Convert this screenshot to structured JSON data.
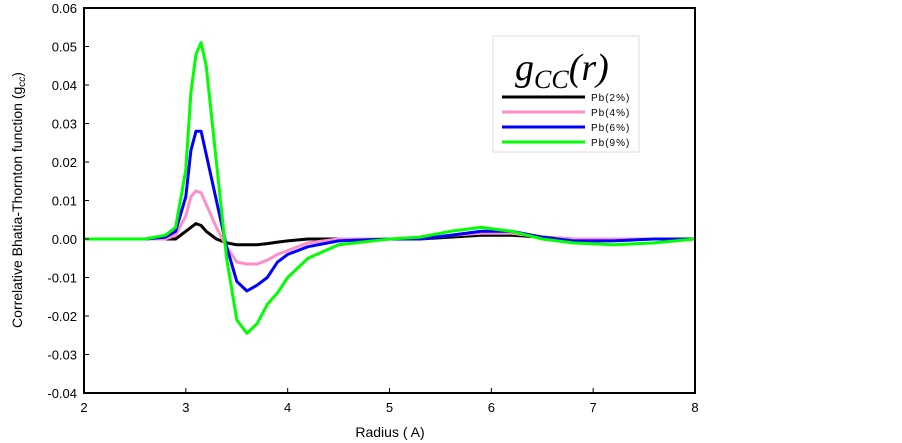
{
  "chart_data": {
    "type": "line",
    "xlabel": "Radius ( A)",
    "ylabel": "Correlative Bhatia-Thornton function (g",
    "ylabel_sub": "cc",
    "ylabel_end": ")",
    "legend_title": "g",
    "legend_title_sub": "CC",
    "legend_title_end": "(r)",
    "legend_position": "top-right",
    "xlim": [
      2,
      8
    ],
    "ylim": [
      -0.04,
      0.06
    ],
    "xticks": [
      2,
      3,
      4,
      5,
      6,
      7,
      8
    ],
    "yticks": [
      "-0.04",
      "-0.03",
      "-0.02",
      "-0.01",
      "0.00",
      "0.01",
      "0.02",
      "0.03",
      "0.04",
      "0.05",
      "0.06"
    ],
    "x": [
      2.0,
      2.6,
      2.8,
      2.9,
      3.0,
      3.05,
      3.1,
      3.15,
      3.2,
      3.3,
      3.4,
      3.5,
      3.6,
      3.7,
      3.8,
      3.9,
      4.0,
      4.2,
      4.5,
      5.0,
      5.3,
      5.6,
      5.9,
      6.2,
      6.5,
      6.8,
      7.2,
      7.6,
      8.0
    ],
    "series": [
      {
        "name": "Pb(2%)",
        "color": "#000000",
        "values": [
          0,
          0,
          0,
          0,
          0.002,
          0.003,
          0.004,
          0.0035,
          0.002,
          0,
          -0.001,
          -0.0015,
          -0.0015,
          -0.0015,
          -0.0012,
          -0.0008,
          -0.0005,
          0,
          0,
          0,
          0,
          0.0005,
          0.001,
          0.001,
          0.0005,
          0,
          0,
          0,
          0
        ]
      },
      {
        "name": "Pb(4%)",
        "color": "#ff8fc8",
        "values": [
          0,
          0,
          0,
          0.001,
          0.006,
          0.011,
          0.0125,
          0.012,
          0.009,
          0.003,
          -0.002,
          -0.006,
          -0.0065,
          -0.0065,
          -0.0055,
          -0.004,
          -0.003,
          -0.001,
          0,
          0,
          0,
          0.001,
          0.0015,
          0.0015,
          0.0005,
          0,
          0,
          0,
          0
        ]
      },
      {
        "name": "Pb(6%)",
        "color": "#0000ff",
        "values": [
          0,
          0,
          0.0005,
          0.002,
          0.011,
          0.023,
          0.028,
          0.028,
          0.022,
          0.01,
          -0.002,
          -0.011,
          -0.0135,
          -0.012,
          -0.01,
          -0.006,
          -0.004,
          -0.002,
          -0.0005,
          0,
          0,
          0.001,
          0.002,
          0.002,
          0.0005,
          -0.0005,
          -0.0005,
          0,
          0
        ]
      },
      {
        "name": "Pb(9%)",
        "color": "#00ff00",
        "values": [
          0,
          0,
          0.001,
          0.003,
          0.018,
          0.038,
          0.048,
          0.051,
          0.045,
          0.02,
          -0.005,
          -0.021,
          -0.0245,
          -0.022,
          -0.017,
          -0.014,
          -0.01,
          -0.005,
          -0.0015,
          0,
          0.0005,
          0.002,
          0.003,
          0.002,
          0,
          -0.001,
          -0.0015,
          -0.001,
          0
        ]
      }
    ]
  }
}
